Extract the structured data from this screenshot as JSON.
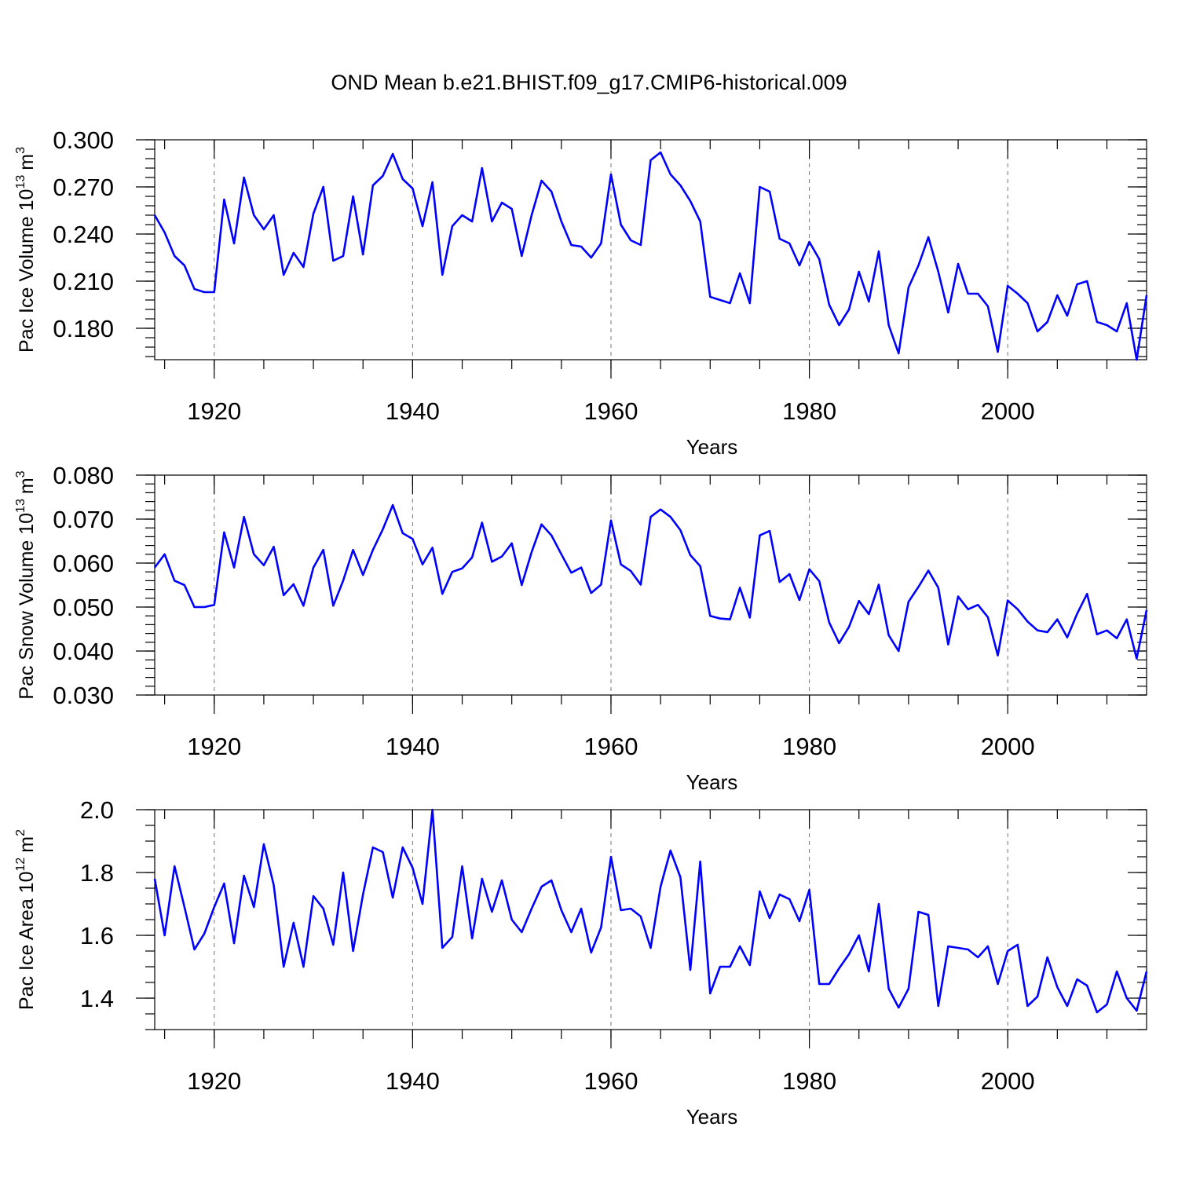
{
  "title": "OND Mean b.e21.BHIST.f09_g17.CMIP6-historical.009",
  "chart_data": [
    {
      "type": "line",
      "xlabel": "Years",
      "ylabel": [
        "Pac Ice Volume 10",
        "13",
        "m",
        "3"
      ],
      "x": [
        1914,
        1915,
        1916,
        1917,
        1918,
        1919,
        1920,
        1921,
        1922,
        1923,
        1924,
        1925,
        1926,
        1927,
        1928,
        1929,
        1930,
        1931,
        1932,
        1933,
        1934,
        1935,
        1936,
        1937,
        1938,
        1939,
        1940,
        1941,
        1942,
        1943,
        1944,
        1945,
        1946,
        1947,
        1948,
        1949,
        1950,
        1951,
        1952,
        1953,
        1954,
        1955,
        1956,
        1957,
        1958,
        1959,
        1960,
        1961,
        1962,
        1963,
        1964,
        1965,
        1966,
        1967,
        1968,
        1969,
        1970,
        1971,
        1972,
        1973,
        1974,
        1975,
        1976,
        1977,
        1978,
        1979,
        1980,
        1981,
        1982,
        1983,
        1984,
        1985,
        1986,
        1987,
        1988,
        1989,
        1990,
        1991,
        1992,
        1993,
        1994,
        1995,
        1996,
        1997,
        1998,
        1999,
        2000,
        2001,
        2002,
        2003,
        2004,
        2005,
        2006,
        2007,
        2008,
        2009,
        2010,
        2011,
        2012,
        2013,
        2014
      ],
      "series": [
        {
          "color": "#0000ff",
          "values": [
            0.252,
            0.241,
            0.226,
            0.22,
            0.205,
            0.203,
            0.203,
            0.262,
            0.234,
            0.276,
            0.252,
            0.243,
            0.252,
            0.214,
            0.228,
            0.219,
            0.253,
            0.27,
            0.223,
            0.226,
            0.264,
            0.227,
            0.271,
            0.277,
            0.291,
            0.275,
            0.269,
            0.245,
            0.273,
            0.214,
            0.245,
            0.252,
            0.248,
            0.282,
            0.248,
            0.26,
            0.256,
            0.226,
            0.252,
            0.274,
            0.267,
            0.248,
            0.233,
            0.232,
            0.225,
            0.234,
            0.278,
            0.246,
            0.236,
            0.233,
            0.287,
            0.292,
            0.278,
            0.271,
            0.261,
            0.248,
            0.2,
            0.198,
            0.196,
            0.215,
            0.196,
            0.27,
            0.267,
            0.237,
            0.234,
            0.22,
            0.235,
            0.224,
            0.195,
            0.182,
            0.192,
            0.216,
            0.197,
            0.229,
            0.182,
            0.164,
            0.206,
            0.22,
            0.238,
            0.216,
            0.19,
            0.221,
            0.202,
            0.202,
            0.194,
            0.165,
            0.207,
            0.202,
            0.196,
            0.178,
            0.184,
            0.201,
            0.188,
            0.208,
            0.21,
            0.184,
            0.182,
            0.178,
            0.196,
            0.16,
            0.201
          ]
        }
      ],
      "xlim": [
        1914,
        2014
      ],
      "xticks": [
        1920,
        1940,
        1960,
        1980,
        2000
      ],
      "ylim": [
        0.16,
        0.3
      ],
      "yticks": [
        {
          "value": 0.3,
          "label": "0.300"
        },
        {
          "value": 0.27,
          "label": "0.270"
        },
        {
          "value": 0.24,
          "label": "0.240"
        },
        {
          "value": 0.21,
          "label": "0.210"
        },
        {
          "value": 0.18,
          "label": "0.180"
        }
      ],
      "grid": "x"
    },
    {
      "type": "line",
      "xlabel": "Years",
      "ylabel": [
        "Pac Snow Volume 10",
        "13",
        "m",
        "3"
      ],
      "x": [
        1914,
        1915,
        1916,
        1917,
        1918,
        1919,
        1920,
        1921,
        1922,
        1923,
        1924,
        1925,
        1926,
        1927,
        1928,
        1929,
        1930,
        1931,
        1932,
        1933,
        1934,
        1935,
        1936,
        1937,
        1938,
        1939,
        1940,
        1941,
        1942,
        1943,
        1944,
        1945,
        1946,
        1947,
        1948,
        1949,
        1950,
        1951,
        1952,
        1953,
        1954,
        1955,
        1956,
        1957,
        1958,
        1959,
        1960,
        1961,
        1962,
        1963,
        1964,
        1965,
        1966,
        1967,
        1968,
        1969,
        1970,
        1971,
        1972,
        1973,
        1974,
        1975,
        1976,
        1977,
        1978,
        1979,
        1980,
        1981,
        1982,
        1983,
        1984,
        1985,
        1986,
        1987,
        1988,
        1989,
        1990,
        1991,
        1992,
        1993,
        1994,
        1995,
        1996,
        1997,
        1998,
        1999,
        2000,
        2001,
        2002,
        2003,
        2004,
        2005,
        2006,
        2007,
        2008,
        2009,
        2010,
        2011,
        2012,
        2013,
        2014
      ],
      "series": [
        {
          "color": "#0000ff",
          "values": [
            0.059,
            0.062,
            0.056,
            0.055,
            0.05,
            0.05,
            0.0505,
            0.067,
            0.059,
            0.0705,
            0.062,
            0.0595,
            0.0637,
            0.0527,
            0.0552,
            0.0503,
            0.059,
            0.063,
            0.0503,
            0.056,
            0.063,
            0.0573,
            0.063,
            0.0677,
            0.0732,
            0.0668,
            0.0655,
            0.0597,
            0.0635,
            0.053,
            0.058,
            0.0588,
            0.0613,
            0.0692,
            0.0603,
            0.0615,
            0.0645,
            0.055,
            0.0625,
            0.0688,
            0.0663,
            0.062,
            0.0578,
            0.059,
            0.0532,
            0.0551,
            0.0697,
            0.0597,
            0.0582,
            0.0551,
            0.0705,
            0.0722,
            0.0705,
            0.0675,
            0.0618,
            0.0593,
            0.048,
            0.0474,
            0.0472,
            0.0544,
            0.0476,
            0.0663,
            0.0673,
            0.0557,
            0.0575,
            0.0516,
            0.0586,
            0.0559,
            0.0465,
            0.0418,
            0.0455,
            0.0514,
            0.0484,
            0.0551,
            0.0436,
            0.04,
            0.0512,
            0.0546,
            0.0583,
            0.0544,
            0.0415,
            0.0524,
            0.0495,
            0.0505,
            0.0477,
            0.039,
            0.0515,
            0.0495,
            0.0467,
            0.0447,
            0.0443,
            0.0472,
            0.0431,
            0.0485,
            0.053,
            0.0438,
            0.0447,
            0.0429,
            0.0472,
            0.0383,
            0.0493
          ]
        }
      ],
      "xlim": [
        1914,
        2014
      ],
      "xticks": [
        1920,
        1940,
        1960,
        1980,
        2000
      ],
      "ylim": [
        0.03,
        0.08
      ],
      "yticks": [
        {
          "value": 0.08,
          "label": "0.080"
        },
        {
          "value": 0.07,
          "label": "0.070"
        },
        {
          "value": 0.06,
          "label": "0.060"
        },
        {
          "value": 0.05,
          "label": "0.050"
        },
        {
          "value": 0.04,
          "label": "0.040"
        },
        {
          "value": 0.03,
          "label": "0.030"
        }
      ],
      "grid": "x"
    },
    {
      "type": "line",
      "xlabel": "Years",
      "ylabel": [
        "Pac Ice Area 10",
        "12",
        "m",
        "2"
      ],
      "x": [
        1914,
        1915,
        1916,
        1917,
        1918,
        1919,
        1920,
        1921,
        1922,
        1923,
        1924,
        1925,
        1926,
        1927,
        1928,
        1929,
        1930,
        1931,
        1932,
        1933,
        1934,
        1935,
        1936,
        1937,
        1938,
        1939,
        1940,
        1941,
        1942,
        1943,
        1944,
        1945,
        1946,
        1947,
        1948,
        1949,
        1950,
        1951,
        1952,
        1953,
        1954,
        1955,
        1956,
        1957,
        1958,
        1959,
        1960,
        1961,
        1962,
        1963,
        1964,
        1965,
        1966,
        1967,
        1968,
        1969,
        1970,
        1971,
        1972,
        1973,
        1974,
        1975,
        1976,
        1977,
        1978,
        1979,
        1980,
        1981,
        1982,
        1983,
        1984,
        1985,
        1986,
        1987,
        1988,
        1989,
        1990,
        1991,
        1992,
        1993,
        1994,
        1995,
        1996,
        1997,
        1998,
        1999,
        2000,
        2001,
        2002,
        2003,
        2004,
        2005,
        2006,
        2007,
        2008,
        2009,
        2010,
        2011,
        2012,
        2013,
        2014
      ],
      "series": [
        {
          "color": "#0000ff",
          "values": [
            1.78,
            1.6,
            1.82,
            1.69,
            1.555,
            1.605,
            1.69,
            1.765,
            1.575,
            1.79,
            1.69,
            1.89,
            1.76,
            1.5,
            1.64,
            1.5,
            1.725,
            1.685,
            1.57,
            1.8,
            1.55,
            1.73,
            1.88,
            1.865,
            1.72,
            1.88,
            1.815,
            1.7,
            2.0,
            1.56,
            1.595,
            1.82,
            1.59,
            1.78,
            1.675,
            1.775,
            1.65,
            1.61,
            1.685,
            1.755,
            1.775,
            1.68,
            1.61,
            1.685,
            1.545,
            1.625,
            1.85,
            1.68,
            1.685,
            1.66,
            1.56,
            1.755,
            1.87,
            1.785,
            1.49,
            1.835,
            1.415,
            1.5,
            1.5,
            1.565,
            1.505,
            1.74,
            1.655,
            1.73,
            1.715,
            1.645,
            1.745,
            1.445,
            1.445,
            1.495,
            1.54,
            1.6,
            1.485,
            1.7,
            1.43,
            1.37,
            1.43,
            1.675,
            1.665,
            1.375,
            1.565,
            1.56,
            1.555,
            1.53,
            1.565,
            1.445,
            1.55,
            1.57,
            1.375,
            1.405,
            1.53,
            1.435,
            1.375,
            1.46,
            1.44,
            1.355,
            1.38,
            1.485,
            1.4,
            1.36,
            1.485
          ]
        }
      ],
      "xlim": [
        1914,
        2014
      ],
      "xticks": [
        1920,
        1940,
        1960,
        1980,
        2000
      ],
      "ylim": [
        1.3,
        2.0
      ],
      "yticks": [
        {
          "value": 2.0,
          "label": "2.0"
        },
        1.8,
        1.6,
        1.4
      ],
      "grid": "x"
    }
  ]
}
